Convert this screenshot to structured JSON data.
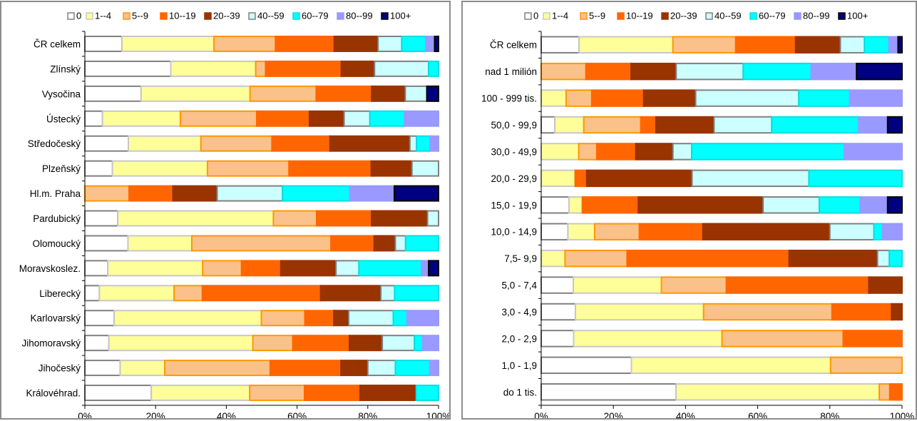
{
  "chart_data": [
    {
      "type": "bar",
      "orientation": "horizontal",
      "stacked": "percent",
      "legend": {
        "position": "top"
      },
      "grid": false,
      "xlim": [
        0,
        100
      ],
      "x_ticks": [
        "0%",
        "20%",
        "40%",
        "60%",
        "80%",
        "100%"
      ],
      "categories": [
        "ČR celkem",
        "Zlínský",
        "Vysočina",
        "Ústecký",
        "Středočeský",
        "Plzeňský",
        "Hl.m. Praha",
        "Pardubický",
        "Olomoucký",
        "Moravskoslez.",
        "Liberecký",
        "Karlovarský",
        "Jihomoravský",
        "Jihočeský",
        "Královéhrad."
      ],
      "series": [
        {
          "name": "0",
          "color": "#ffffff",
          "stroke": "#808080",
          "values": [
            10.5,
            24.3,
            15.9,
            5.0,
            12.3,
            7.8,
            0,
            9.3,
            12.2,
            6.5,
            4.1,
            8.3,
            6.8,
            10.0,
            18.8
          ]
        },
        {
          "name": "1--4",
          "color": "#ffff99",
          "stroke": "#c8c8c8",
          "values": [
            26.0,
            24.0,
            30.8,
            22.0,
            20.5,
            26.8,
            0,
            43.9,
            18.0,
            26.8,
            21.1,
            41.6,
            40.7,
            12.6,
            27.8
          ]
        },
        {
          "name": "5--9",
          "color": "#fbc18a",
          "stroke": "#ff9900",
          "values": [
            17.4,
            2.8,
            18.7,
            21.6,
            20.1,
            23.0,
            12.5,
            12.2,
            39.3,
            11.0,
            8.0,
            12.3,
            11.3,
            29.8,
            15.5
          ]
        },
        {
          "name": "10--19",
          "color": "#ff6600",
          "stroke": "#ff6600",
          "values": [
            16.6,
            21.4,
            15.7,
            14.9,
            16.4,
            23.2,
            12.4,
            15.5,
            12.2,
            11.1,
            33.4,
            8.2,
            16.0,
            20.0,
            15.7
          ]
        },
        {
          "name": "20--39",
          "color": "#993300",
          "stroke": "#993300",
          "values": [
            12.4,
            9.4,
            9.5,
            9.8,
            22.6,
            11.5,
            12.5,
            15.8,
            6.0,
            15.6,
            17.0,
            4.2,
            9.3,
            7.6,
            15.9
          ]
        },
        {
          "name": "40--59",
          "color": "#ccffff",
          "stroke": "#808080",
          "values": [
            6.7,
            15.3,
            6.1,
            7.3,
            1.9,
            7.5,
            18.5,
            3.1,
            2.9,
            6.5,
            3.9,
            12.6,
            9.1,
            7.8,
            0
          ]
        },
        {
          "name": "60--79",
          "color": "#00ffff",
          "stroke": "#00e0e0",
          "values": [
            6.8,
            2.8,
            0,
            9.8,
            3.8,
            0,
            19.0,
            0,
            9.3,
            17.7,
            12.4,
            3.9,
            2.3,
            9.7,
            6.3
          ]
        },
        {
          "name": "80--99",
          "color": "#9999ff",
          "stroke": "#9999ff",
          "values": [
            2.5,
            0,
            0,
            9.6,
            2.4,
            0,
            12.6,
            0,
            0,
            2.0,
            0,
            8.9,
            4.5,
            2.5,
            0
          ]
        },
        {
          "name": "100+",
          "color": "#000080",
          "stroke": "#000000",
          "values": [
            1.1,
            0,
            3.3,
            0,
            0,
            0,
            12.5,
            0,
            0,
            2.8,
            0,
            0,
            0,
            0,
            0
          ]
        }
      ]
    },
    {
      "type": "bar",
      "orientation": "horizontal",
      "stacked": "percent",
      "legend": {
        "position": "top"
      },
      "grid": false,
      "xlim": [
        0,
        100
      ],
      "x_ticks": [
        "0%",
        "20%",
        "40%",
        "60%",
        "80%",
        "100%"
      ],
      "categories": [
        "ČR celkem",
        "nad 1 milión",
        "100 - 999 tis.",
        "50,0 - 99,9",
        "30,0 - 49,9",
        "20,0 - 29,9",
        "15,0 - 19,9",
        "10,0 - 14,9",
        "7,5- 9,9",
        "5,0 - 7,4",
        "3,0 - 4,9",
        "2,0 - 2,9",
        "1,0 - 1,9",
        "do 1 tis."
      ],
      "series": [
        {
          "name": "0",
          "color": "#ffffff",
          "stroke": "#808080",
          "values": [
            10.5,
            0,
            0,
            3.8,
            0,
            0,
            7.7,
            7.4,
            0,
            8.9,
            9.5,
            9.0,
            25.0,
            37.4
          ]
        },
        {
          "name": "1--4",
          "color": "#ffff99",
          "stroke": "#c8c8c8",
          "values": [
            26.0,
            0,
            6.9,
            8.0,
            10.4,
            9.4,
            3.7,
            7.4,
            6.6,
            24.4,
            35.5,
            41.1,
            55.2,
            56.3
          ]
        },
        {
          "name": "5--9",
          "color": "#fbc18a",
          "stroke": "#ff9900",
          "values": [
            17.4,
            12.4,
            7.1,
            15.8,
            5.0,
            0,
            0,
            12.4,
            17.2,
            18.0,
            35.6,
            33.6,
            19.8,
            2.9
          ]
        },
        {
          "name": "10--19",
          "color": "#ff6600",
          "stroke": "#ff6600",
          "values": [
            16.6,
            12.5,
            14.4,
            4.2,
            10.8,
            3.2,
            15.5,
            17.6,
            44.9,
            39.5,
            16.5,
            16.3,
            0,
            3.4
          ]
        },
        {
          "name": "20--39",
          "color": "#993300",
          "stroke": "#993300",
          "values": [
            12.4,
            12.5,
            14.4,
            16.1,
            10.3,
            29.2,
            34.6,
            35.2,
            24.5,
            9.2,
            2.9,
            0,
            0,
            0
          ]
        },
        {
          "name": "40--59",
          "color": "#ccffff",
          "stroke": "#808080",
          "values": [
            6.7,
            18.6,
            28.6,
            16.0,
            5.2,
            32.4,
            15.6,
            12.2,
            3.3,
            0,
            0,
            0,
            0,
            0
          ]
        },
        {
          "name": "60--79",
          "color": "#00ffff",
          "stroke": "#00e0e0",
          "values": [
            6.8,
            18.8,
            14.1,
            24.1,
            42.3,
            25.8,
            11.3,
            2.4,
            3.5,
            0,
            0,
            0,
            0,
            0
          ]
        },
        {
          "name": "80--99",
          "color": "#9999ff",
          "stroke": "#9999ff",
          "values": [
            2.5,
            12.6,
            14.5,
            8.0,
            16.0,
            0,
            7.6,
            5.4,
            0,
            0,
            0,
            0,
            0,
            0
          ]
        },
        {
          "name": "100+",
          "color": "#000080",
          "stroke": "#000000",
          "values": [
            1.1,
            12.6,
            0,
            4.0,
            0,
            0,
            4.0,
            0,
            0,
            0,
            0,
            0,
            0,
            0
          ]
        }
      ]
    }
  ]
}
